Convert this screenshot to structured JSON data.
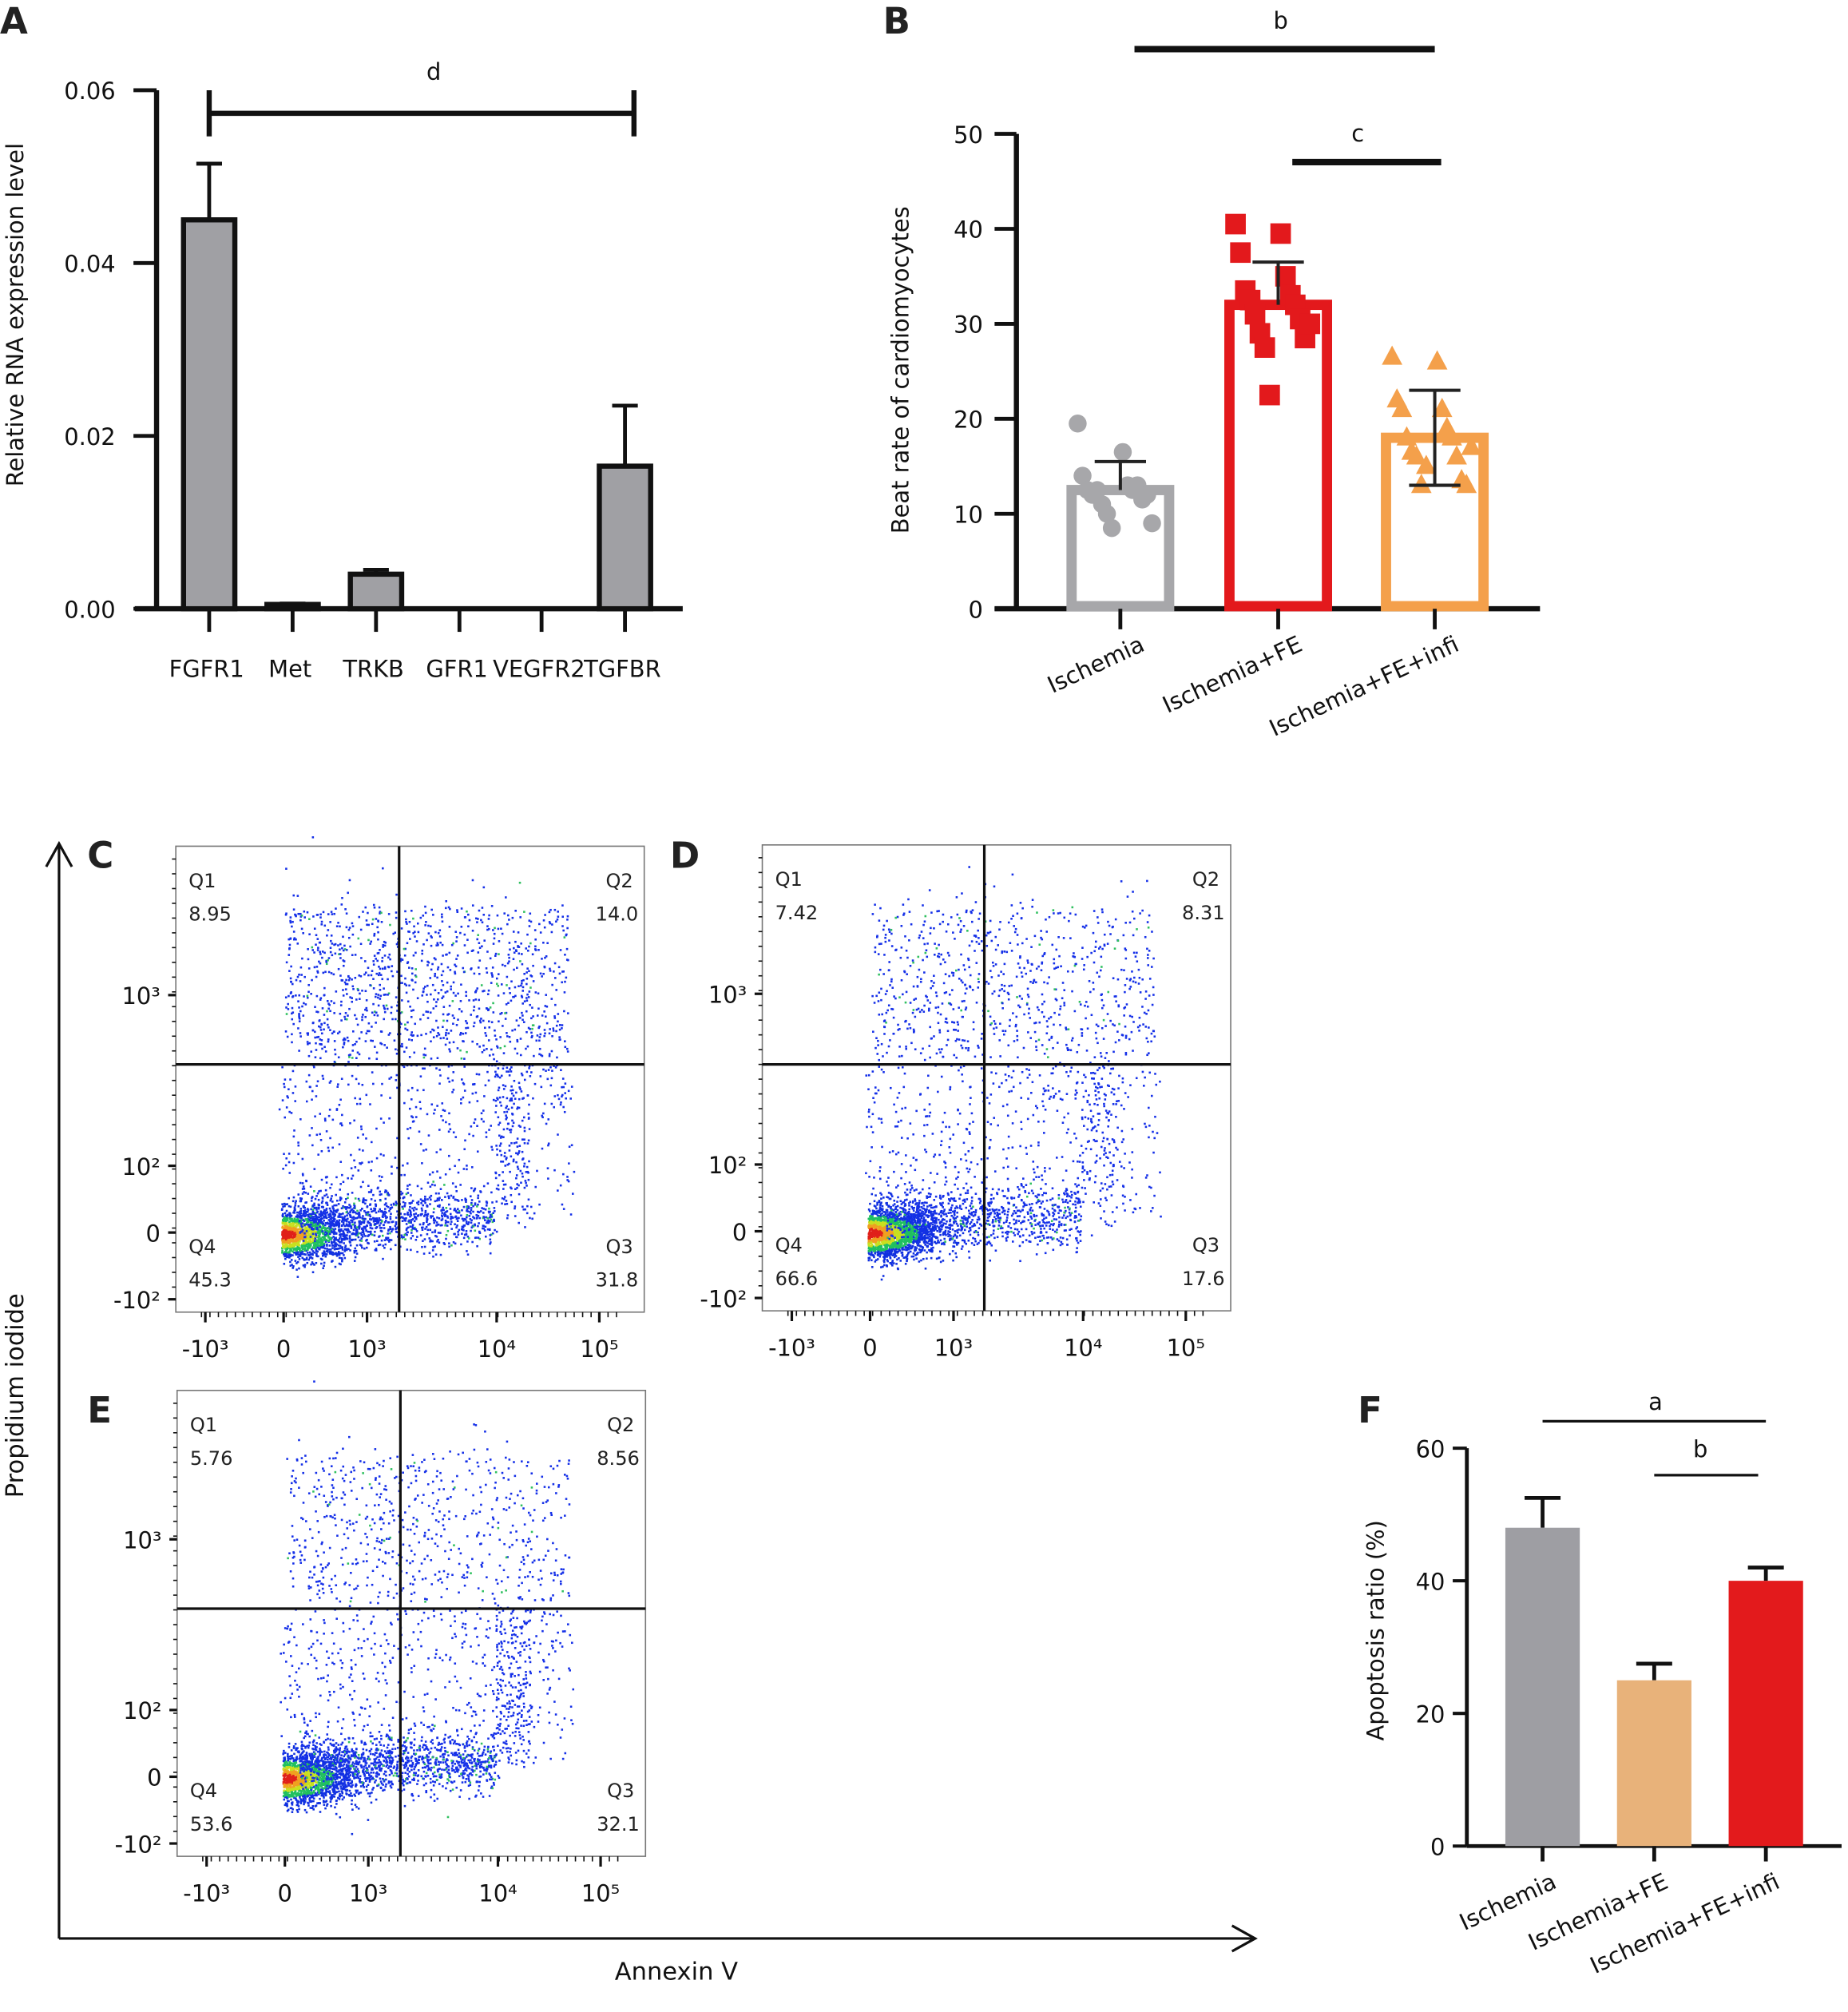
{
  "panel_letters": [
    "A",
    "B",
    "C",
    "D",
    "E",
    "F"
  ],
  "axis_titles": {
    "y": "Propidium iodide",
    "x": "Annexin V"
  },
  "chart_data": [
    {
      "panel": "A",
      "type": "bar",
      "categories": [
        "FGFR1",
        "Met",
        "TRKB",
        "GFR1",
        "VEGFR2",
        "TGFBR"
      ],
      "values": [
        0.045,
        0.0005,
        0.004,
        0,
        0,
        0.0165
      ],
      "error_upper": [
        0.0515,
        0.0006,
        0.0045,
        0,
        0,
        0.0235
      ],
      "ylabel": "Relative RNA expression level",
      "ylim": [
        0,
        0.06
      ],
      "yticks": [
        "0.00",
        "0.02",
        "0.04",
        "0.06"
      ],
      "bar_color": "#a0a0a4",
      "significance": [
        {
          "label": "d",
          "from": "FGFR1",
          "to": "TGFBR"
        }
      ]
    },
    {
      "panel": "B",
      "type": "bar",
      "categories": [
        "Ischemia",
        "Ischemia+FE",
        "Ischemia+FE+infi"
      ],
      "values": [
        12.5,
        32,
        18
      ],
      "sd": [
        3,
        4.5,
        5
      ],
      "points": [
        [
          19.5,
          16.5,
          14,
          13,
          12.5,
          12.5,
          12,
          13,
          12.5,
          11.5,
          11,
          12,
          10,
          9,
          8.5
        ],
        [
          40.5,
          39.5,
          37.5,
          35,
          33.5,
          33,
          32.5,
          32,
          31,
          30.5,
          29,
          28.5,
          27.5,
          30,
          22.5
        ],
        [
          26.5,
          26,
          22,
          21,
          21,
          19,
          18,
          18,
          16.5,
          16,
          16,
          13.5,
          13,
          13,
          15,
          17
        ]
      ],
      "colors": [
        "#a7a7aa",
        "#e3191c",
        "#f4a04b"
      ],
      "ylabel": "Beat rate of cardiomyocytes",
      "ylim": [
        0,
        50
      ],
      "yticks": [
        "0",
        "10",
        "20",
        "30",
        "40",
        "50"
      ],
      "significance": [
        {
          "label": "b",
          "from": "Ischemia",
          "to": "Ischemia+FE+infi"
        },
        {
          "label": "c",
          "from": "Ischemia+FE",
          "to": "Ischemia+FE+infi"
        }
      ]
    },
    {
      "panel": "F",
      "type": "bar",
      "categories": [
        "Ischemia",
        "Ischemia+FE",
        "Ischemia+FE+infi"
      ],
      "values": [
        48,
        25,
        40
      ],
      "error_upper": [
        52.5,
        27.5,
        42
      ],
      "colors": [
        "#9e9ea3",
        "#e8b27a",
        "#e31a1c"
      ],
      "ylabel": "Apoptosis ratio (%)",
      "ylim": [
        0,
        60
      ],
      "yticks": [
        "0",
        "20",
        "40",
        "60"
      ],
      "significance": [
        {
          "label": "a",
          "from": "Ischemia",
          "to": "Ischemia+FE+infi"
        },
        {
          "label": "b",
          "from": "Ischemia+FE",
          "to": "Ischemia+FE+infi"
        }
      ]
    }
  ],
  "flow_plots": [
    {
      "panel": "C",
      "quadrants": {
        "Q1": "8.95",
        "Q2": "14.0",
        "Q3": "31.8",
        "Q4": "45.3"
      }
    },
    {
      "panel": "D",
      "quadrants": {
        "Q1": "7.42",
        "Q2": "8.31",
        "Q3": "17.6",
        "Q4": "66.6"
      }
    },
    {
      "panel": "E",
      "quadrants": {
        "Q1": "5.76",
        "Q2": "8.56",
        "Q3": "32.1",
        "Q4": "53.6"
      }
    }
  ],
  "flow_axis": {
    "yticks": [
      "10³",
      "10²",
      "0",
      "-10²"
    ],
    "xticks": [
      "-10³",
      "0",
      "10³",
      "10⁴",
      "10⁵"
    ]
  }
}
